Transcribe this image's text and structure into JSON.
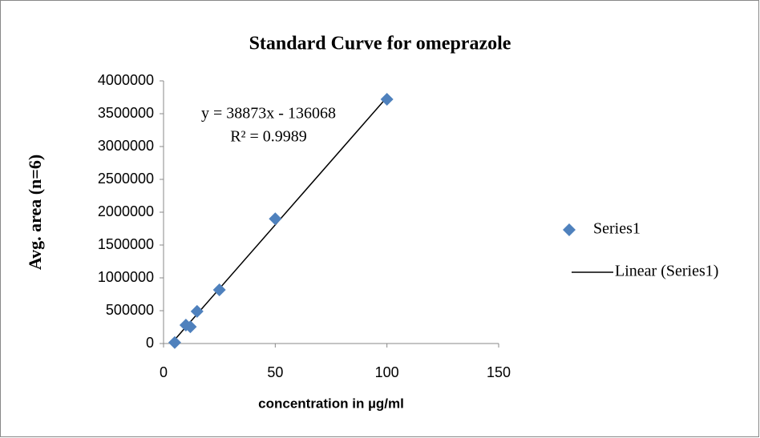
{
  "chart_data": {
    "type": "scatter",
    "title": "Standard Curve for omeprazole",
    "x_label": "concentration in µg/ml",
    "y_label": "Avg. area (n=6)",
    "x": [
      5,
      10,
      12,
      15,
      25,
      50,
      100
    ],
    "series": [
      {
        "name": "Series1",
        "color": "#4f81bd",
        "values": [
          15000,
          280000,
          255000,
          490000,
          817000,
          1900000,
          3720000
        ]
      }
    ],
    "trendline": {
      "name": "Linear (Series1)",
      "color": "#000000",
      "slope": 38873,
      "intercept": -136068,
      "equation": "y = 38873x - 136068",
      "r2_label": "R² = 0.9989"
    },
    "xlim": [
      0,
      150
    ],
    "xticks": [
      0,
      50,
      100,
      150
    ],
    "ylim": [
      0,
      4000000
    ],
    "yticks": [
      0,
      500000,
      1000000,
      1500000,
      2000000,
      2500000,
      3000000,
      3500000,
      4000000
    ],
    "grid": false
  }
}
